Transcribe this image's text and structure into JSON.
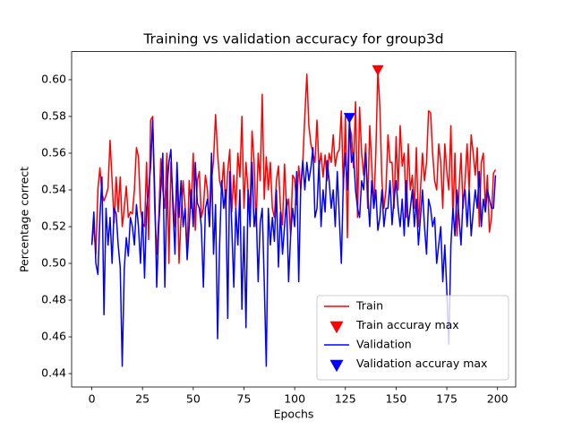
{
  "chart_data": {
    "type": "line",
    "title": "Training vs validation accuracy for group3d",
    "x_label": "Epochs",
    "y_label": "Percentage correct",
    "xlim": [
      -9.95,
      208.95
    ],
    "ylim": [
      0.4327,
      0.6153
    ],
    "xticks": [
      0,
      25,
      50,
      75,
      100,
      125,
      150,
      175,
      200
    ],
    "yticks": [
      0.44,
      0.46,
      0.48,
      {
        "value": 0.5,
        "label": "0.50"
      },
      0.52,
      0.54,
      0.56,
      0.58,
      {
        "value": 0.6,
        "label": "0.60"
      }
    ],
    "legend": "lower right",
    "x": [
      0,
      1,
      2,
      3,
      4,
      5,
      6,
      7,
      8,
      9,
      10,
      11,
      12,
      13,
      14,
      15,
      16,
      17,
      18,
      19,
      20,
      21,
      22,
      23,
      24,
      25,
      26,
      27,
      28,
      29,
      30,
      31,
      32,
      33,
      34,
      35,
      36,
      37,
      38,
      39,
      40,
      41,
      42,
      43,
      44,
      45,
      46,
      47,
      48,
      49,
      50,
      51,
      52,
      53,
      54,
      55,
      56,
      57,
      58,
      59,
      60,
      61,
      62,
      63,
      64,
      65,
      66,
      67,
      68,
      69,
      70,
      71,
      72,
      73,
      74,
      75,
      76,
      77,
      78,
      79,
      80,
      81,
      82,
      83,
      84,
      85,
      86,
      87,
      88,
      89,
      90,
      91,
      92,
      93,
      94,
      95,
      96,
      97,
      98,
      99,
      100,
      101,
      102,
      103,
      104,
      105,
      106,
      107,
      108,
      109,
      110,
      111,
      112,
      113,
      114,
      115,
      116,
      117,
      118,
      119,
      120,
      121,
      122,
      123,
      124,
      125,
      126,
      127,
      128,
      129,
      130,
      131,
      132,
      133,
      134,
      135,
      136,
      137,
      138,
      139,
      140,
      141,
      142,
      143,
      144,
      145,
      146,
      147,
      148,
      149,
      150,
      151,
      152,
      153,
      154,
      155,
      156,
      157,
      158,
      159,
      160,
      161,
      162,
      163,
      164,
      165,
      166,
      167,
      168,
      169,
      170,
      171,
      172,
      173,
      174,
      175,
      176,
      177,
      178,
      179,
      180,
      181,
      182,
      183,
      184,
      185,
      186,
      187,
      188,
      189,
      190,
      191,
      192,
      193,
      194,
      195,
      196,
      197,
      198,
      199
    ],
    "series": [
      {
        "name": "Train",
        "color": "#ff0000",
        "style": "line",
        "values": [
          0.51,
          0.521,
          0.505,
          0.54,
          0.552,
          0.538,
          0.534,
          0.537,
          0.541,
          0.567,
          0.545,
          0.522,
          0.547,
          0.528,
          0.547,
          0.52,
          0.53,
          0.542,
          0.525,
          0.528,
          0.527,
          0.54,
          0.563,
          0.558,
          0.53,
          0.522,
          0.52,
          0.555,
          0.513,
          0.578,
          0.58,
          0.53,
          0.505,
          0.525,
          0.557,
          0.54,
          0.53,
          0.56,
          0.5,
          0.555,
          0.535,
          0.52,
          0.552,
          0.5,
          0.525,
          0.545,
          0.53,
          0.505,
          0.545,
          0.53,
          0.56,
          0.518,
          0.545,
          0.55,
          0.525,
          0.53,
          0.548,
          0.54,
          0.52,
          0.545,
          0.556,
          0.581,
          0.56,
          0.545,
          0.54,
          0.555,
          0.53,
          0.55,
          0.562,
          0.528,
          0.548,
          0.53,
          0.56,
          0.547,
          0.58,
          0.53,
          0.555,
          0.54,
          0.53,
          0.572,
          0.555,
          0.52,
          0.56,
          0.545,
          0.592,
          0.535,
          0.558,
          0.54,
          0.555,
          0.53,
          0.525,
          0.545,
          0.553,
          0.53,
          0.521,
          0.554,
          0.53,
          0.535,
          0.515,
          0.548,
          0.546,
          0.532,
          0.553,
          0.54,
          0.555,
          0.58,
          0.603,
          0.575,
          0.565,
          0.56,
          0.555,
          0.578,
          0.552,
          0.56,
          0.547,
          0.559,
          0.545,
          0.56,
          0.555,
          0.57,
          0.553,
          0.56,
          0.562,
          0.583,
          0.54,
          0.58,
          0.514,
          0.575,
          0.57,
          0.552,
          0.588,
          0.525,
          0.585,
          0.56,
          0.548,
          0.565,
          0.53,
          0.575,
          0.553,
          0.53,
          0.56,
          0.605,
          0.585,
          0.545,
          0.53,
          0.54,
          0.57,
          0.555,
          0.555,
          0.53,
          0.569,
          0.54,
          0.575,
          0.553,
          0.56,
          0.525,
          0.565,
          0.54,
          0.548,
          0.53,
          0.563,
          0.52,
          0.54,
          0.56,
          0.545,
          0.555,
          0.583,
          0.582,
          0.56,
          0.545,
          0.54,
          0.565,
          0.555,
          0.53,
          0.565,
          0.55,
          0.54,
          0.575,
          0.525,
          0.56,
          0.515,
          0.54,
          0.56,
          0.53,
          0.545,
          0.565,
          0.54,
          0.57,
          0.56,
          0.548,
          0.563,
          0.52,
          0.555,
          0.56,
          0.53,
          0.548,
          0.517,
          0.525,
          0.549,
          0.551
        ]
      },
      {
        "name": "Train accuray max",
        "color": "#ff0000",
        "style": "marker",
        "x": [
          141
        ],
        "values": [
          0.605
        ]
      },
      {
        "name": "Validation",
        "color": "#0000ff",
        "style": "line",
        "values": [
          0.51,
          0.528,
          0.5,
          0.494,
          0.525,
          0.547,
          0.472,
          0.53,
          0.51,
          0.525,
          0.5,
          0.53,
          0.527,
          0.51,
          0.498,
          0.444,
          0.497,
          0.514,
          0.504,
          0.525,
          0.52,
          0.51,
          0.532,
          0.52,
          0.5,
          0.528,
          0.492,
          0.53,
          0.54,
          0.553,
          0.578,
          0.54,
          0.487,
          0.52,
          0.54,
          0.56,
          0.487,
          0.54,
          0.555,
          0.562,
          0.53,
          0.505,
          0.555,
          0.525,
          0.545,
          0.52,
          0.53,
          0.502,
          0.52,
          0.54,
          0.52,
          0.555,
          0.533,
          0.53,
          0.52,
          0.487,
          0.53,
          0.535,
          0.52,
          0.56,
          0.505,
          0.532,
          0.459,
          0.51,
          0.545,
          0.53,
          0.54,
          0.47,
          0.55,
          0.52,
          0.487,
          0.53,
          0.51,
          0.54,
          0.475,
          0.52,
          0.465,
          0.54,
          0.52,
          0.555,
          0.52,
          0.53,
          0.49,
          0.522,
          0.53,
          0.49,
          0.444,
          0.53,
          0.51,
          0.525,
          0.512,
          0.54,
          0.498,
          0.528,
          0.505,
          0.52,
          0.535,
          0.49,
          0.515,
          0.53,
          0.52,
          0.55,
          0.49,
          0.542,
          0.556,
          0.54,
          0.555,
          0.545,
          0.552,
          0.563,
          0.525,
          0.53,
          0.556,
          0.52,
          0.54,
          0.528,
          0.556,
          0.545,
          0.53,
          0.54,
          0.52,
          0.55,
          0.525,
          0.5,
          0.545,
          0.56,
          0.54,
          0.579,
          0.555,
          0.56,
          0.54,
          0.53,
          0.525,
          0.545,
          0.54,
          0.56,
          0.538,
          0.52,
          0.545,
          0.53,
          0.54,
          0.518,
          0.525,
          0.54,
          0.52,
          0.53,
          0.53,
          0.545,
          0.521,
          0.535,
          0.545,
          0.53,
          0.52,
          0.535,
          0.515,
          0.545,
          0.52,
          0.53,
          0.54,
          0.52,
          0.535,
          0.51,
          0.525,
          0.54,
          0.52,
          0.505,
          0.535,
          0.53,
          0.52,
          0.525,
          0.5,
          0.51,
          0.52,
          0.49,
          0.51,
          0.485,
          0.456,
          0.51,
          0.53,
          0.515,
          0.54,
          0.525,
          0.51,
          0.535,
          0.54,
          0.52,
          0.54,
          0.515,
          0.528,
          0.54,
          0.53,
          0.55,
          0.52,
          0.535,
          0.528,
          0.54,
          0.535,
          0.53,
          0.53,
          0.548
        ]
      },
      {
        "name": "Validation accuray max",
        "color": "#0000ff",
        "style": "marker",
        "x": [
          127
        ],
        "values": [
          0.579
        ]
      }
    ]
  }
}
